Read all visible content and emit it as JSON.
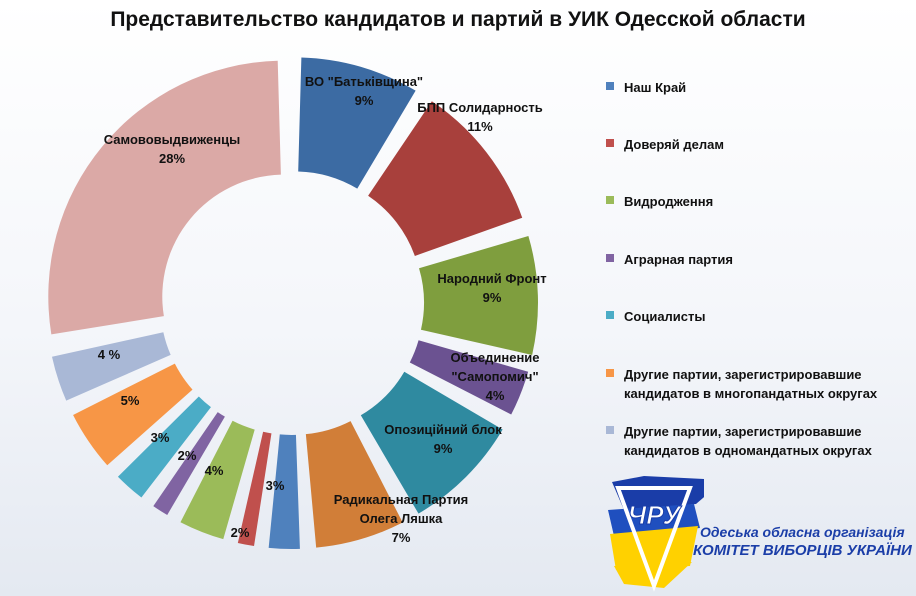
{
  "chart_data": {
    "type": "pie",
    "title": "Представительство кандидатов и партий в УИК Одесской области",
    "slices": [
      {
        "name": "ВО \"Батьківщина\"",
        "value": 9,
        "label": "9%",
        "color": "#3c6ba3"
      },
      {
        "name": "БПП Солидарность",
        "value": 11,
        "label": "11%",
        "color": "#a8403c"
      },
      {
        "name": "Народний Фронт",
        "value": 9,
        "label": "9%",
        "color": "#7f9e3e"
      },
      {
        "name": "Объединение \"Самопомич\"",
        "value": 4,
        "label": "4%",
        "color": "#6b5291"
      },
      {
        "name": "Опозиційний блок",
        "value": 9,
        "label": "9%",
        "color": "#2f8aa0"
      },
      {
        "name": "Радикальная Партия Олега Ляшка",
        "value": 7,
        "label": "7%",
        "color": "#d17e38"
      },
      {
        "name": "Наш Край",
        "value": 3,
        "label": "3%",
        "color": "#4f81bd"
      },
      {
        "name": "Доверяй делам",
        "value": 2,
        "label": "2%",
        "color": "#c0504d"
      },
      {
        "name": "Видродження",
        "value": 4,
        "label": "4%",
        "color": "#9bbb59"
      },
      {
        "name": "Аграрная партия",
        "value": 2,
        "label": "2%",
        "color": "#8064a2"
      },
      {
        "name": "Социалисты",
        "value": 3,
        "label": "3%",
        "color": "#4bacc6"
      },
      {
        "name": "Другие партии, зарегистрировавшие кандидатов в многопандатных округах",
        "value": 5,
        "label": "5%",
        "color": "#f79646"
      },
      {
        "name": "Другие партии, зарегистрировавшие кандидатов в одномандатных округах",
        "value": 4,
        "label": "4 %",
        "color": "#a9b8d6"
      },
      {
        "name": "Самововыдвиженцы",
        "value": 28,
        "label": "28%",
        "color": "#dba9a6"
      }
    ],
    "legend": [
      {
        "label": "Наш Край",
        "color": "#4f81bd"
      },
      {
        "label": "Доверяй делам",
        "color": "#c0504d"
      },
      {
        "label": "Видродження",
        "color": "#9bbb59"
      },
      {
        "label": "Аграрная партия",
        "color": "#8064a2"
      },
      {
        "label": "Социалисты",
        "color": "#4bacc6"
      },
      {
        "label": "Другие партии, зарегистрировавшие кандидатов в многопандатных округах",
        "color": "#f79646"
      },
      {
        "label": "Другие партии, зарегистрировавшие кандидатов в одномандатных округах",
        "color": "#a9b8d6"
      }
    ],
    "legend_position": "right"
  },
  "logo": {
    "monogram": "ЧРУ",
    "org_line1": "Одеська обласна організація",
    "org_line2": "КОМІТЕТ ВИБОРЦІВ УКРАЇНИ"
  }
}
